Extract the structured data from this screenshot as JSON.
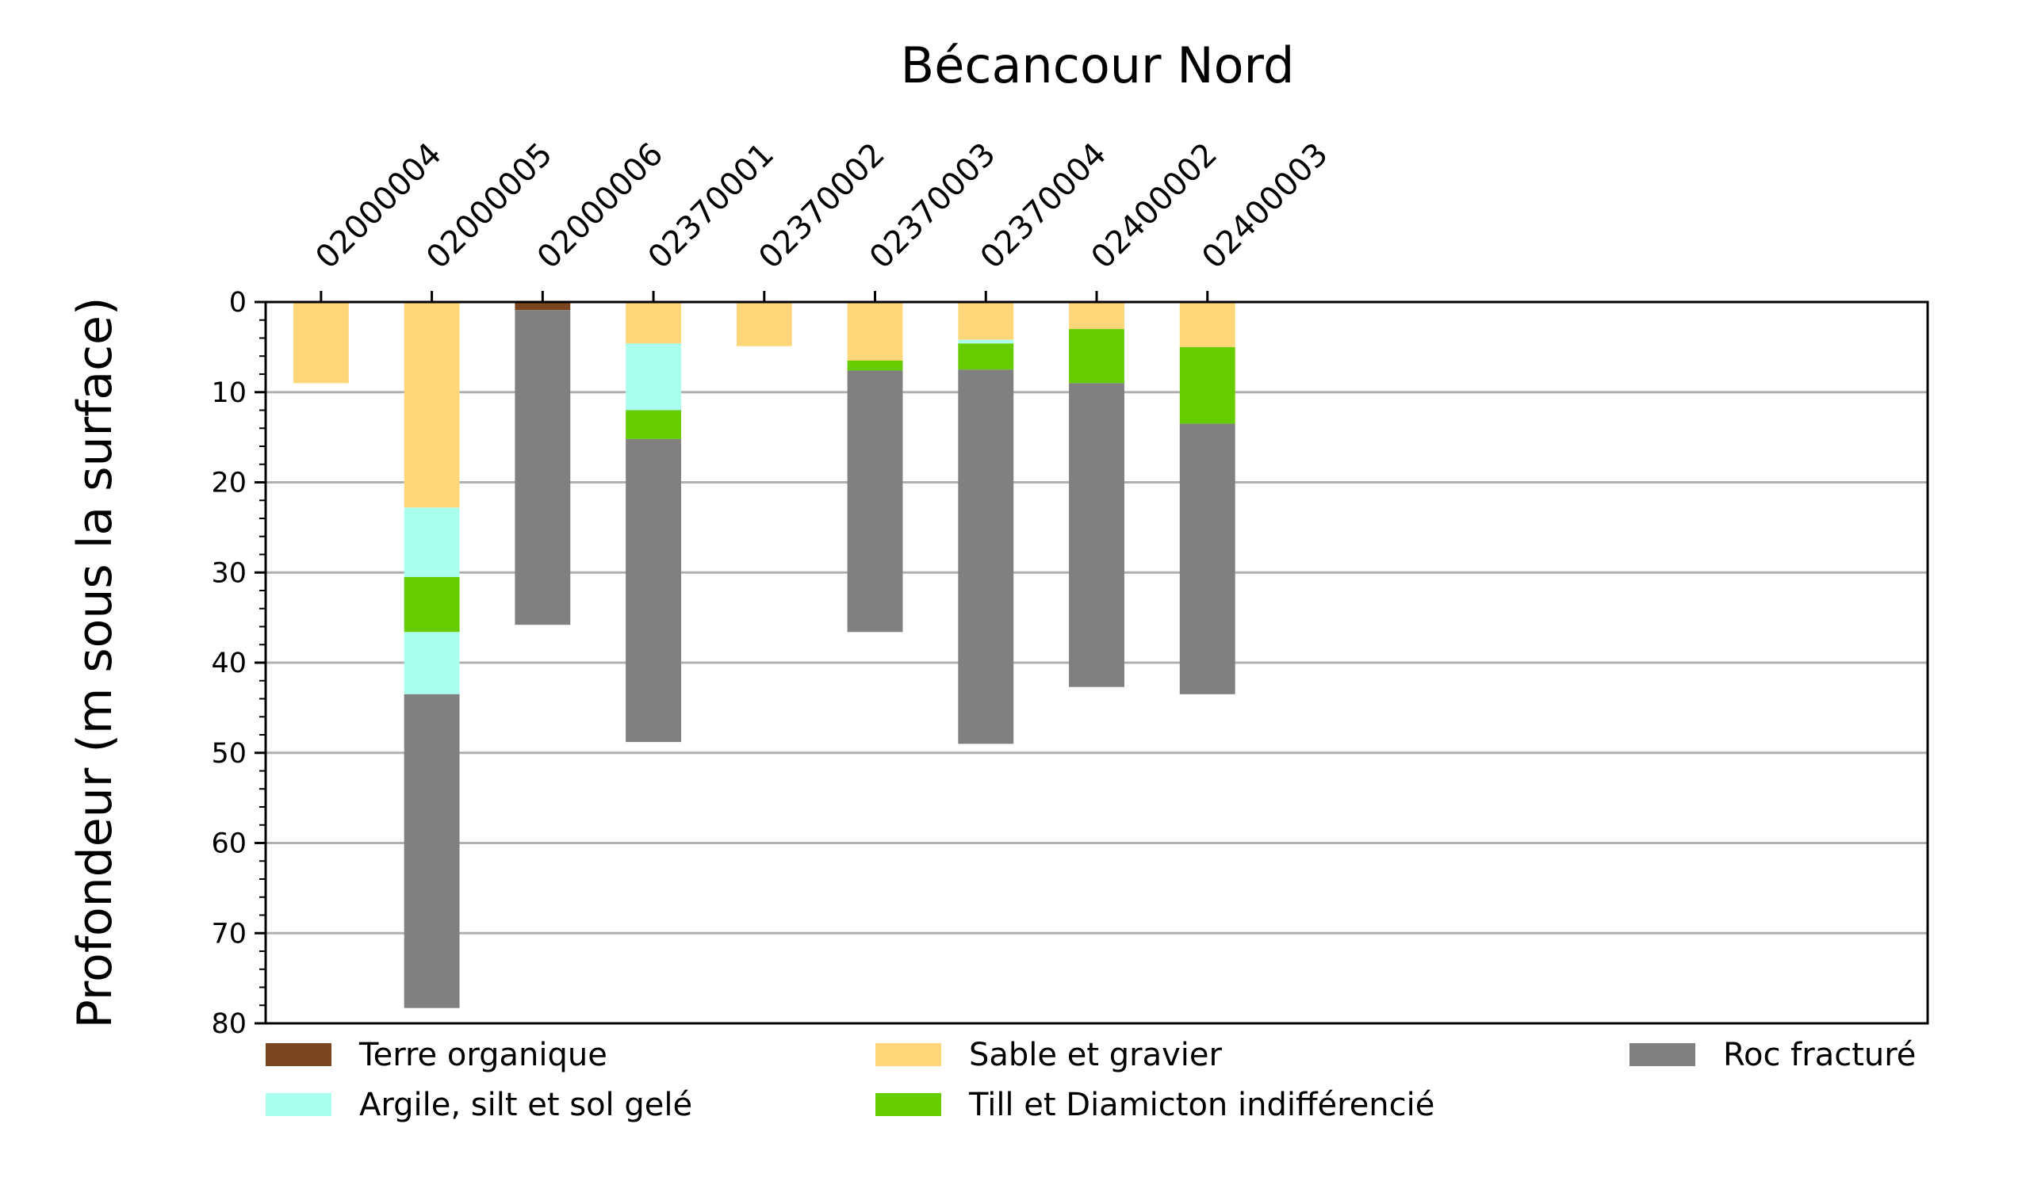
{
  "chart_data": {
    "type": "bar",
    "stacked": true,
    "title": "Bécancour Nord",
    "xlabel": "",
    "ylabel": "Profondeur (m sous la surface)",
    "ylim": [
      80,
      0
    ],
    "y_inverted": true,
    "yticks": [
      0,
      10,
      20,
      30,
      40,
      50,
      60,
      70,
      80
    ],
    "y_minor_step": 2,
    "x_slots": 15,
    "category_label_position": "top",
    "category_label_rotation": -45,
    "grid": "horizontal-major",
    "legend_placement": "below-plot",
    "categories": [
      "02000004",
      "02000005",
      "02000006",
      "02370001",
      "02370002",
      "02370003",
      "02370004",
      "02400002",
      "02400003"
    ],
    "materials": [
      {
        "key": "terre",
        "name": "Terre organique",
        "color": "#7B4520"
      },
      {
        "key": "argile",
        "name": "Argile, silt et sol gelé",
        "color": "#AAFFEE"
      },
      {
        "key": "sable",
        "name": "Sable et gravier",
        "color": "#FFD77A"
      },
      {
        "key": "till",
        "name": "Till et Diamicton indifférencié",
        "color": "#66CC00"
      },
      {
        "key": "roc",
        "name": "Roc fracturé",
        "color": "#808080"
      }
    ],
    "layers": [
      [
        {
          "material": "sable",
          "top": 0,
          "bottom": 9
        }
      ],
      [
        {
          "material": "sable",
          "top": 0,
          "bottom": 22.8
        },
        {
          "material": "argile",
          "top": 22.8,
          "bottom": 30.5
        },
        {
          "material": "till",
          "top": 30.5,
          "bottom": 36.6
        },
        {
          "material": "argile",
          "top": 36.6,
          "bottom": 43.5
        },
        {
          "material": "roc",
          "top": 43.5,
          "bottom": 78.3
        }
      ],
      [
        {
          "material": "terre",
          "top": 0,
          "bottom": 0.9
        },
        {
          "material": "roc",
          "top": 0.9,
          "bottom": 35.8
        }
      ],
      [
        {
          "material": "sable",
          "top": 0,
          "bottom": 4.6
        },
        {
          "material": "argile",
          "top": 4.6,
          "bottom": 12
        },
        {
          "material": "till",
          "top": 12,
          "bottom": 15.2
        },
        {
          "material": "roc",
          "top": 15.2,
          "bottom": 48.8
        }
      ],
      [
        {
          "material": "sable",
          "top": 0,
          "bottom": 4.9
        }
      ],
      [
        {
          "material": "sable",
          "top": 0,
          "bottom": 6.5
        },
        {
          "material": "till",
          "top": 6.5,
          "bottom": 7.6
        },
        {
          "material": "roc",
          "top": 7.6,
          "bottom": 36.6
        }
      ],
      [
        {
          "material": "sable",
          "top": 0,
          "bottom": 4.2
        },
        {
          "material": "argile",
          "top": 4.2,
          "bottom": 4.6
        },
        {
          "material": "till",
          "top": 4.6,
          "bottom": 7.5
        },
        {
          "material": "roc",
          "top": 7.5,
          "bottom": 49
        }
      ],
      [
        {
          "material": "sable",
          "top": 0,
          "bottom": 3
        },
        {
          "material": "till",
          "top": 3,
          "bottom": 9
        },
        {
          "material": "roc",
          "top": 9,
          "bottom": 42.7
        }
      ],
      [
        {
          "material": "sable",
          "top": 0,
          "bottom": 5
        },
        {
          "material": "till",
          "top": 5,
          "bottom": 13.5
        },
        {
          "material": "roc",
          "top": 13.5,
          "bottom": 43.5
        }
      ]
    ]
  }
}
